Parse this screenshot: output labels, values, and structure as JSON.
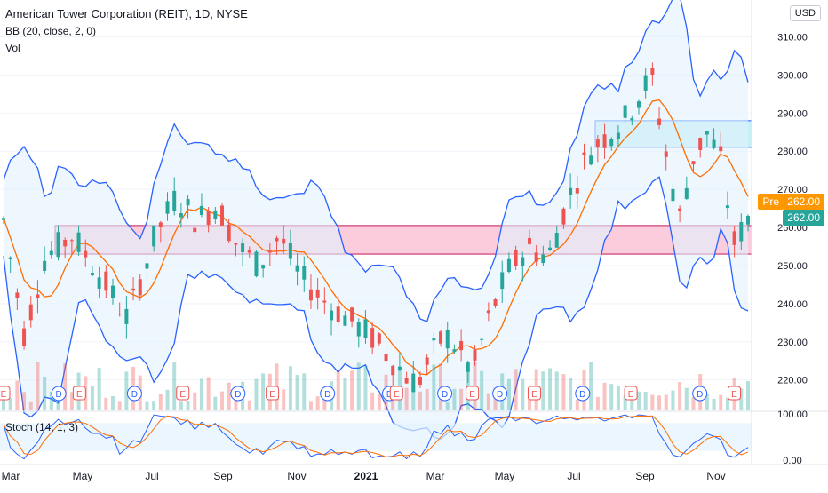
{
  "header": {
    "title": "American Tower Corporation (REIT), 1D, NYSE",
    "bb_label": "BB (20, close, 2, 0)",
    "vol_label": "Vol",
    "currency": "USD"
  },
  "price_tags": {
    "pre_label": "Pre",
    "pre_value": "262.00",
    "last_value": "262.00"
  },
  "stoch_label": "Stoch (14, 1, 3)",
  "colors": {
    "up": "#26a69a",
    "down": "#ef5350",
    "bb_band": "#2962ff",
    "bb_basis": "#ff6d00",
    "stoch_k": "#2962ff",
    "stoch_d": "#ff6d00",
    "zone_pink": "#f8bbd0",
    "zone_cyan": "#b2ebf2",
    "pre_tag": "#ff9800",
    "last_tag": "#26a69a"
  },
  "chart_data": {
    "type": "candlestick",
    "y_range": [
      212,
      315
    ],
    "y_ticks": [
      "310.00",
      "300.00",
      "290.00",
      "280.00",
      "270.00",
      "260.00",
      "250.00",
      "240.00",
      "230.00",
      "220.00"
    ],
    "x_ticks": [
      "Mar",
      "May",
      "Jul",
      "Sep",
      "Nov",
      "2021",
      "Mar",
      "May",
      "Jul",
      "Sep",
      "Nov"
    ],
    "zones": [
      {
        "from": 253,
        "to": 260.5,
        "color": "pink"
      },
      {
        "from": 281,
        "to": 288,
        "color": "cyan"
      }
    ],
    "price_path": [
      [
        0,
        262
      ],
      [
        3,
        232
      ],
      [
        6,
        252
      ],
      [
        10,
        258
      ],
      [
        13,
        250
      ],
      [
        18,
        236
      ],
      [
        22,
        258
      ],
      [
        25,
        268
      ],
      [
        28,
        262
      ],
      [
        31,
        266
      ],
      [
        34,
        255
      ],
      [
        37,
        250
      ],
      [
        40,
        258
      ],
      [
        43,
        247
      ],
      [
        47,
        240
      ],
      [
        50,
        236
      ],
      [
        53,
        232
      ],
      [
        56,
        226
      ],
      [
        58,
        222
      ],
      [
        60,
        219
      ],
      [
        62,
        226
      ],
      [
        64,
        232
      ],
      [
        66,
        228
      ],
      [
        68,
        222
      ],
      [
        70,
        234
      ],
      [
        73,
        248
      ],
      [
        76,
        255
      ],
      [
        79,
        252
      ],
      [
        82,
        268
      ],
      [
        85,
        280
      ],
      [
        88,
        285
      ],
      [
        90,
        288
      ],
      [
        92,
        294
      ],
      [
        94,
        300
      ],
      [
        96,
        280
      ],
      [
        98,
        262
      ],
      [
        100,
        278
      ],
      [
        102,
        285
      ],
      [
        104,
        278
      ],
      [
        106,
        256
      ],
      [
        108,
        262
      ]
    ],
    "event_markers": [
      {
        "x": 0,
        "type": "E"
      },
      {
        "x": 8,
        "type": "D"
      },
      {
        "x": 11,
        "type": "E"
      },
      {
        "x": 19,
        "type": "D"
      },
      {
        "x": 26,
        "type": "E"
      },
      {
        "x": 34,
        "type": "D"
      },
      {
        "x": 39,
        "type": "E"
      },
      {
        "x": 47,
        "type": "D"
      },
      {
        "x": 56,
        "type": "D"
      },
      {
        "x": 57,
        "type": "E"
      },
      {
        "x": 64,
        "type": "D"
      },
      {
        "x": 68,
        "type": "E"
      },
      {
        "x": 72,
        "type": "D"
      },
      {
        "x": 77,
        "type": "E"
      },
      {
        "x": 84,
        "type": "D"
      },
      {
        "x": 91,
        "type": "E"
      },
      {
        "x": 101,
        "type": "D"
      },
      {
        "x": 106,
        "type": "E"
      }
    ],
    "stoch": {
      "y_range": [
        0,
        100
      ],
      "y_ticks": [
        "100.00",
        "0.00"
      ],
      "band": [
        20,
        80
      ]
    }
  }
}
